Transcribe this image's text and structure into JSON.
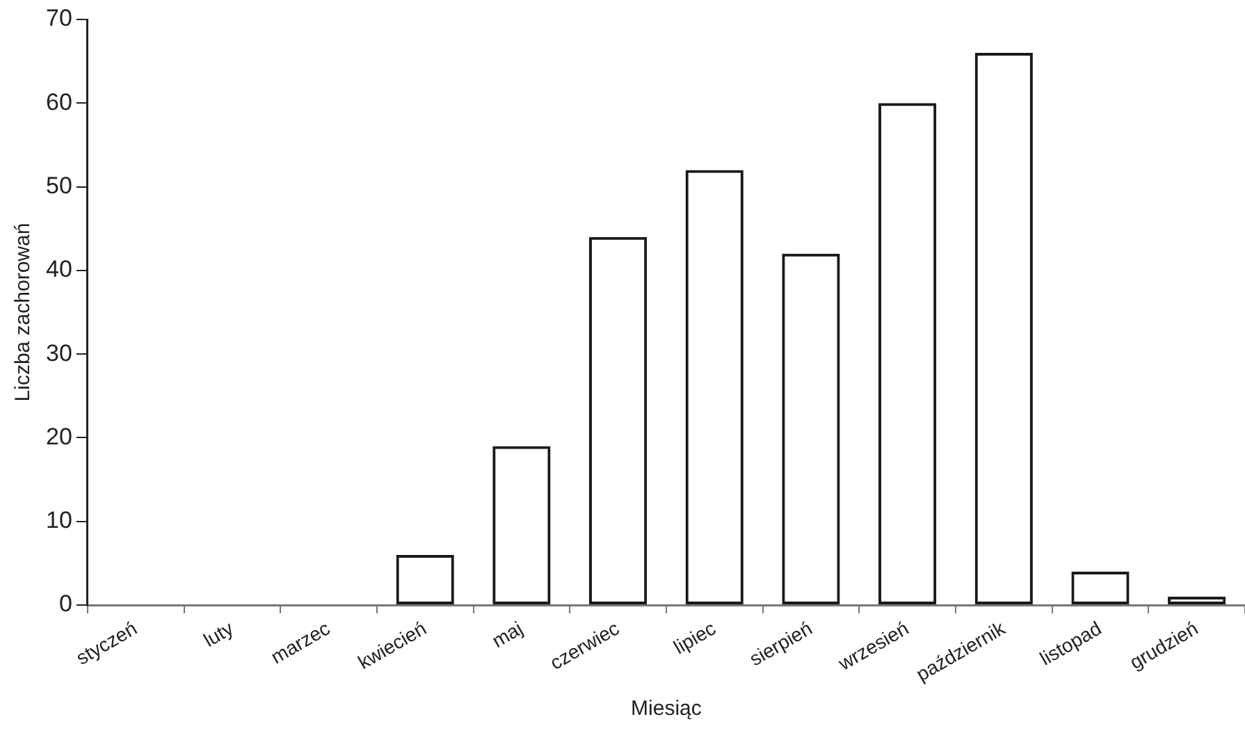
{
  "chart_data": {
    "type": "bar",
    "xlabel": "Miesiąc",
    "ylabel": "Liczba zachorowań",
    "categories": [
      "styczeń",
      "luty",
      "marzec",
      "kwiecień",
      "maj",
      "czerwiec",
      "lipiec",
      "sierpień",
      "wrzesień",
      "październik",
      "listopad",
      "grudzień"
    ],
    "values": [
      0,
      0,
      0,
      6,
      19,
      44,
      52,
      42,
      60,
      66,
      4,
      1
    ],
    "color": "#1a1a1a",
    "ylim": [
      0,
      70
    ],
    "yticks": [
      0,
      10,
      20,
      30,
      40,
      50,
      60,
      70
    ],
    "grid": false,
    "legend": false
  }
}
